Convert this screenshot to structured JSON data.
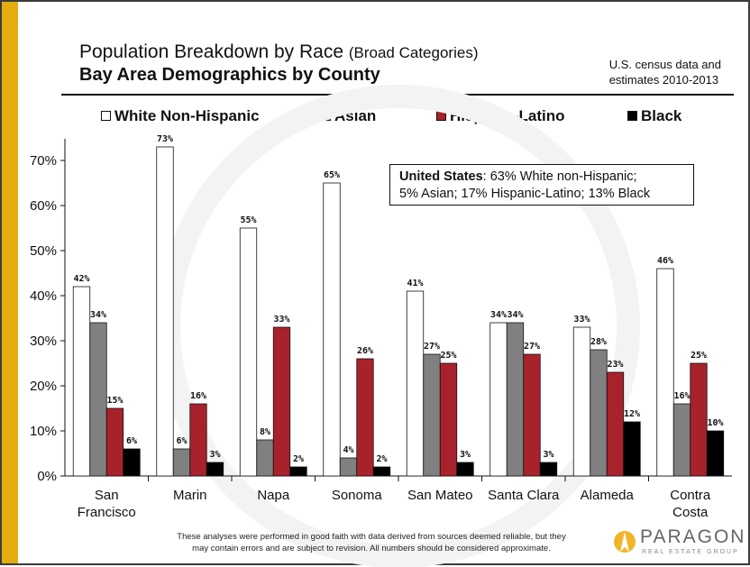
{
  "header": {
    "title_main": "Population Breakdown by Race",
    "title_sub": "(Broad Categories)",
    "subtitle": "Bay Area Demographics by County",
    "source_line1": "U.S. census data and",
    "source_line2": "estimates 2010-2013"
  },
  "callout": {
    "bold": "United States",
    "line1_rest": ": 63% White non-Hispanic;",
    "line2": "5% Asian; 17% Hispanic-Latino; 13% Black"
  },
  "footer": {
    "line1": "These analyses were performed in good faith with data derived from sources  deemed reliable, but they",
    "line2": "may contain errors  and are subject to revision.  All numbers should be considered approximate."
  },
  "logo": {
    "name": "PARAGON",
    "tagline": "REAL ESTATE GROUP"
  },
  "colors": {
    "white": "#ffffff",
    "asian": "#808080",
    "hispanic": "#a8222b",
    "black": "#000000",
    "accent": "#e3ad0f"
  },
  "chart_data": {
    "type": "bar",
    "categories": [
      [
        "San",
        "Francisco"
      ],
      [
        "Marin"
      ],
      [
        "Napa"
      ],
      [
        "Sonoma"
      ],
      [
        "San Mateo"
      ],
      [
        "Santa Clara"
      ],
      [
        "Alameda"
      ],
      [
        "Contra",
        "Costa"
      ]
    ],
    "series": [
      {
        "name": "White Non-Hispanic",
        "color": "#ffffff",
        "values": [
          42,
          73,
          55,
          65,
          41,
          34,
          33,
          46
        ],
        "labels": [
          "42%",
          "73%",
          "55%",
          "65%",
          "41%",
          "34%",
          "33%",
          "46%"
        ]
      },
      {
        "name": "Asian",
        "color": "#808080",
        "values": [
          34,
          6,
          8,
          4,
          27,
          34,
          28,
          16
        ],
        "labels": [
          "34%",
          "6%",
          "8%",
          "4%",
          "27%",
          "34%",
          "28%",
          "16%"
        ]
      },
      {
        "name": "Hispanic-Latino",
        "color": "#a8222b",
        "values": [
          15,
          16,
          33,
          26,
          25,
          27,
          23,
          25
        ],
        "labels": [
          "15%",
          "16%",
          "33%",
          "26%",
          "25%",
          "27%",
          "23%",
          "25%"
        ]
      },
      {
        "name": "Black",
        "color": "#000000",
        "values": [
          6,
          3,
          2,
          2,
          3,
          3,
          12,
          10
        ],
        "labels": [
          "6%",
          "3%",
          "2%",
          "2%",
          "3%",
          "3%",
          "12%",
          "10%"
        ]
      }
    ],
    "yticks": [
      "0%",
      "10%",
      "20%",
      "30%",
      "40%",
      "50%",
      "60%",
      "70%"
    ],
    "ylim": [
      0,
      75
    ],
    "legend": "top",
    "grid": false
  }
}
